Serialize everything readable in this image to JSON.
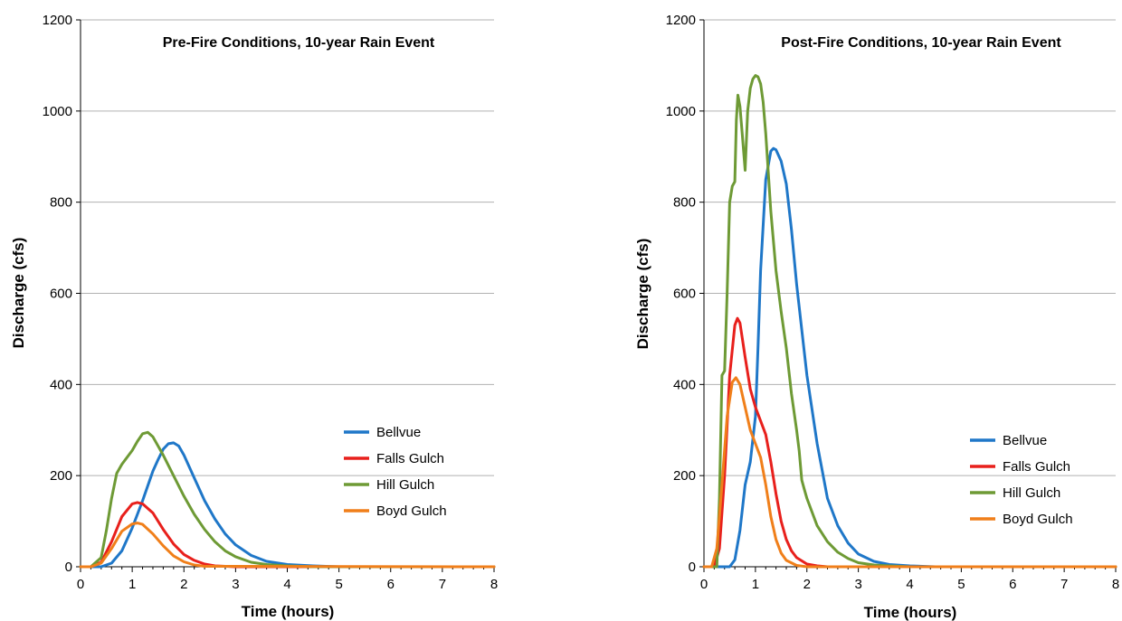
{
  "chart_data": [
    {
      "type": "line",
      "title": "Pre-Fire Conditions, 10-year Rain Event",
      "xlabel": "Time (hours)",
      "ylabel": "Discharge (cfs)",
      "xlim": [
        0,
        8
      ],
      "ylim": [
        0,
        1200
      ],
      "xticks": [
        "0",
        "1",
        "2",
        "3",
        "4",
        "5",
        "6",
        "7",
        "8"
      ],
      "yticks": [
        "0",
        "200",
        "400",
        "600",
        "800",
        "1000",
        "1200"
      ],
      "grid": "horizontal",
      "legend_position": "lower-right",
      "series": [
        {
          "name": "Bellvue",
          "color": "#1f77c8",
          "x": [
            0,
            0.4,
            0.6,
            0.8,
            1.0,
            1.2,
            1.4,
            1.5,
            1.6,
            1.7,
            1.8,
            1.9,
            2.0,
            2.2,
            2.4,
            2.6,
            2.8,
            3.0,
            3.3,
            3.6,
            4.0,
            4.5,
            5.0,
            5.5,
            6.0,
            8.0
          ],
          "y": [
            0,
            0,
            8,
            35,
            85,
            145,
            210,
            235,
            258,
            270,
            272,
            265,
            245,
            195,
            145,
            105,
            72,
            48,
            25,
            12,
            5,
            2,
            0,
            0,
            0,
            0
          ]
        },
        {
          "name": "Falls Gulch",
          "color": "#e8201c",
          "x": [
            0,
            0.2,
            0.4,
            0.6,
            0.8,
            1.0,
            1.1,
            1.2,
            1.4,
            1.6,
            1.8,
            2.0,
            2.2,
            2.4,
            2.6,
            3.0,
            8.0
          ],
          "y": [
            0,
            0,
            10,
            55,
            110,
            138,
            141,
            138,
            118,
            82,
            50,
            27,
            14,
            6,
            2,
            0,
            0
          ]
        },
        {
          "name": "Hill Gulch",
          "color": "#6e9a35",
          "x": [
            0,
            0.2,
            0.4,
            0.5,
            0.6,
            0.7,
            0.8,
            1.0,
            1.1,
            1.2,
            1.3,
            1.4,
            1.6,
            1.8,
            2.0,
            2.2,
            2.4,
            2.6,
            2.8,
            3.0,
            3.3,
            3.6,
            4.0,
            4.5,
            5.0,
            8.0
          ],
          "y": [
            0,
            0,
            20,
            80,
            150,
            205,
            225,
            255,
            275,
            292,
            295,
            285,
            245,
            200,
            155,
            115,
            82,
            55,
            35,
            22,
            10,
            5,
            2,
            0,
            0,
            0
          ]
        },
        {
          "name": "Boyd Gulch",
          "color": "#f07f1a",
          "x": [
            0,
            0.2,
            0.4,
            0.6,
            0.8,
            1.0,
            1.1,
            1.2,
            1.4,
            1.6,
            1.8,
            2.0,
            2.2,
            2.4,
            8.0
          ],
          "y": [
            0,
            0,
            8,
            40,
            78,
            94,
            96,
            93,
            72,
            46,
            24,
            11,
            4,
            1,
            0
          ]
        }
      ]
    },
    {
      "type": "line",
      "title": "Post-Fire Conditions, 10-year Rain Event",
      "xlabel": "Time (hours)",
      "ylabel": "Discharge (cfs)",
      "xlim": [
        0,
        8
      ],
      "ylim": [
        0,
        1200
      ],
      "xticks": [
        "0",
        "1",
        "2",
        "3",
        "4",
        "5",
        "6",
        "7",
        "8"
      ],
      "yticks": [
        "0",
        "200",
        "400",
        "600",
        "800",
        "1000",
        "1200"
      ],
      "grid": "horizontal",
      "legend_position": "lower-right",
      "series": [
        {
          "name": "Bellvue",
          "color": "#1f77c8",
          "x": [
            0,
            0.5,
            0.6,
            0.7,
            0.8,
            0.9,
            1.0,
            1.05,
            1.1,
            1.2,
            1.3,
            1.35,
            1.4,
            1.5,
            1.6,
            1.7,
            1.8,
            2.0,
            2.2,
            2.4,
            2.6,
            2.8,
            3.0,
            3.3,
            3.6,
            4.0,
            4.5,
            5.0,
            8.0
          ],
          "y": [
            0,
            0,
            15,
            80,
            180,
            230,
            330,
            480,
            650,
            850,
            912,
            918,
            915,
            890,
            840,
            740,
            620,
            420,
            270,
            150,
            90,
            52,
            28,
            12,
            5,
            2,
            0,
            0,
            0
          ]
        },
        {
          "name": "Falls Gulch",
          "color": "#e8201c",
          "x": [
            0,
            0.2,
            0.3,
            0.4,
            0.5,
            0.6,
            0.65,
            0.7,
            0.8,
            0.9,
            1.0,
            1.2,
            1.3,
            1.4,
            1.5,
            1.6,
            1.7,
            1.8,
            2.0,
            2.2,
            2.4,
            8.0
          ],
          "y": [
            0,
            0,
            40,
            200,
            420,
            530,
            545,
            535,
            460,
            390,
            350,
            290,
            230,
            160,
            100,
            60,
            35,
            20,
            6,
            2,
            0,
            0
          ]
        },
        {
          "name": "Hill Gulch",
          "color": "#6e9a35",
          "x": [
            0,
            0.25,
            0.3,
            0.35,
            0.4,
            0.45,
            0.5,
            0.55,
            0.6,
            0.63,
            0.66,
            0.7,
            0.75,
            0.8,
            0.85,
            0.9,
            0.95,
            1.0,
            1.05,
            1.1,
            1.15,
            1.2,
            1.3,
            1.4,
            1.5,
            1.6,
            1.7,
            1.8,
            1.85,
            1.9,
            1.95,
            2.0,
            2.2,
            2.4,
            2.6,
            2.8,
            3.0,
            3.3,
            3.6,
            4.0,
            4.5,
            5.0,
            8.0
          ],
          "y": [
            0,
            0,
            150,
            420,
            430,
            600,
            800,
            835,
            845,
            980,
            1035,
            1010,
            940,
            870,
            1000,
            1050,
            1070,
            1078,
            1075,
            1060,
            1020,
            950,
            780,
            650,
            560,
            480,
            380,
            300,
            255,
            190,
            170,
            150,
            90,
            55,
            32,
            18,
            9,
            4,
            2,
            0,
            0,
            0,
            0
          ]
        },
        {
          "name": "Boyd Gulch",
          "color": "#f07f1a",
          "x": [
            0,
            0.15,
            0.25,
            0.35,
            0.45,
            0.55,
            0.62,
            0.7,
            0.8,
            0.9,
            1.0,
            1.1,
            1.2,
            1.3,
            1.4,
            1.5,
            1.6,
            1.8,
            2.0,
            8.0
          ],
          "y": [
            0,
            0,
            40,
            180,
            330,
            405,
            415,
            400,
            350,
            300,
            270,
            240,
            180,
            110,
            60,
            30,
            14,
            3,
            0,
            0
          ]
        }
      ]
    }
  ]
}
